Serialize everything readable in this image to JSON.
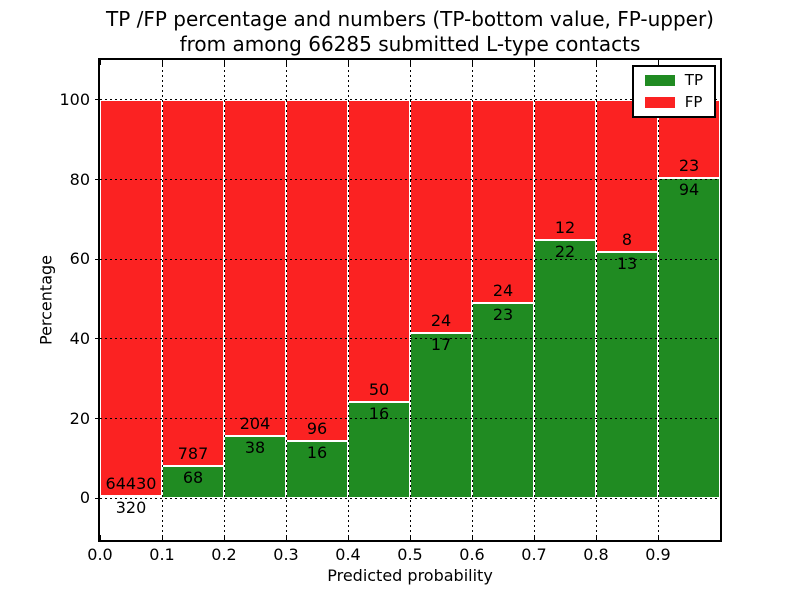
{
  "title": {
    "lines": [
      "TP /FP percentage and numbers (TP-bottom value, FP-upper)",
      "from among 66285 submitted L-type contacts"
    ]
  },
  "chart_data": {
    "type": "bar",
    "stacked": true,
    "title": "TP /FP percentage and numbers (TP-bottom value, FP-upper)\nfrom among 66285 submitted L-type contacts",
    "xlabel": "Predicted probability",
    "ylabel": "Percentage",
    "total_contacts": 66285,
    "bin_edges": [
      0.0,
      0.1,
      0.2,
      0.3,
      0.4,
      0.5,
      0.6,
      0.7,
      0.8,
      0.9,
      1.0
    ],
    "series": [
      {
        "name": "TP",
        "position": "bottom",
        "color": "#208b22",
        "counts": [
          320,
          68,
          38,
          16,
          16,
          17,
          23,
          22,
          13,
          94
        ]
      },
      {
        "name": "FP",
        "position": "top",
        "color": "#fb2222",
        "counts": [
          64430,
          787,
          204,
          96,
          50,
          24,
          24,
          12,
          8,
          23
        ]
      }
    ],
    "tp_percentages": [
      0.49,
      7.95,
      15.7,
      14.29,
      24.24,
      41.46,
      48.94,
      64.71,
      61.9,
      80.34
    ],
    "bar_total_percent": 100,
    "xlim": [
      0.0,
      1.0
    ],
    "ylim": [
      -10.5,
      110.0
    ],
    "xtick_values": [
      0.0,
      0.1,
      0.2,
      0.3,
      0.4,
      0.5,
      0.6,
      0.7,
      0.8,
      0.9
    ],
    "xtick_labels": [
      "0.0",
      "0.1",
      "0.2",
      "0.3",
      "0.4",
      "0.5",
      "0.6",
      "0.7",
      "0.8",
      "0.9"
    ],
    "ytick_values": [
      0,
      20,
      40,
      60,
      80,
      100
    ],
    "ytick_labels": [
      "0",
      "20",
      "40",
      "60",
      "80",
      "100"
    ],
    "grid": true,
    "grid_style": "dotted",
    "legend": {
      "position": "upper-right",
      "entries": [
        {
          "label": "TP",
          "color": "#208b22"
        },
        {
          "label": "FP",
          "color": "#fb2222"
        }
      ]
    }
  }
}
